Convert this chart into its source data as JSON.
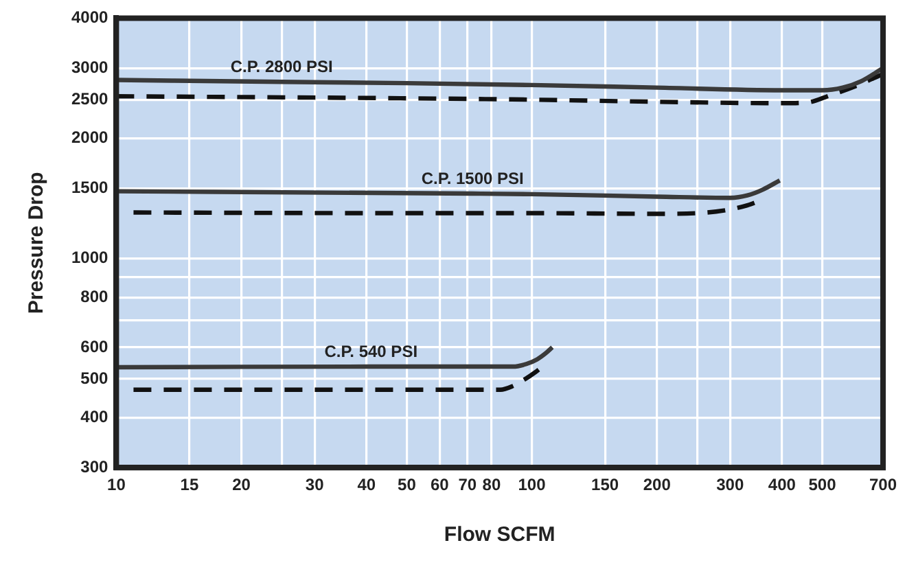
{
  "chart_data": {
    "type": "line",
    "xlabel": "Flow SCFM",
    "ylabel": "Pressure Drop",
    "log": "xy",
    "grid": true,
    "legend": false,
    "marker": "none",
    "xlim": [
      10,
      700
    ],
    "xticks": [
      10,
      15,
      20,
      {
        "value": 25,
        "label": null
      },
      30,
      40,
      50,
      60,
      70,
      80,
      100,
      150,
      200,
      {
        "value": 250,
        "label": null
      },
      300,
      400,
      500,
      700
    ],
    "ylim": [
      300,
      4000
    ],
    "yticks": [
      300,
      400,
      500,
      600,
      {
        "value": 700,
        "label": null
      },
      800,
      {
        "value": 900,
        "label": null
      },
      1000,
      1500,
      2000,
      2500,
      3000,
      4000
    ],
    "series": [
      {
        "name": "C.P. 2800 PSI",
        "color": "#3a3a3a",
        "line_style": "solid",
        "x": [
          10,
          25,
          50,
          100,
          200,
          400,
          500,
          560,
          620,
          700
        ],
        "values": [
          2800,
          2770,
          2750,
          2720,
          2680,
          2640,
          2640,
          2680,
          2780,
          3000
        ]
      },
      {
        "color": "#111111",
        "line_style": "dashed",
        "x": [
          10,
          50,
          100,
          200,
          400,
          460,
          520,
          600,
          700
        ],
        "values": [
          2550,
          2520,
          2500,
          2470,
          2450,
          2460,
          2560,
          2700,
          2900
        ]
      },
      {
        "name": "C.P. 1500 PSI",
        "color": "#3a3a3a",
        "line_style": "solid",
        "x": [
          10,
          72,
          100,
          200,
          300,
          330,
          360,
          395
        ],
        "values": [
          1475,
          1455,
          1450,
          1430,
          1420,
          1440,
          1490,
          1570
        ]
      },
      {
        "color": "#111111",
        "line_style": "dashed",
        "x": [
          11,
          50,
          100,
          200,
          250,
          290,
          330,
          350
        ],
        "values": [
          1305,
          1300,
          1300,
          1295,
          1300,
          1320,
          1360,
          1390
        ]
      },
      {
        "name": "C.P. 540 PSI",
        "color": "#3a3a3a",
        "line_style": "solid",
        "x": [
          10,
          41,
          90,
          97,
          103,
          108,
          112
        ],
        "values": [
          535,
          537,
          537,
          545,
          560,
          580,
          600
        ]
      },
      {
        "color": "#111111",
        "line_style": "dashed",
        "x": [
          11,
          50,
          84,
          90,
          95,
          102,
          108
        ],
        "values": [
          470,
          470,
          470,
          480,
          495,
          520,
          545
        ]
      }
    ]
  }
}
